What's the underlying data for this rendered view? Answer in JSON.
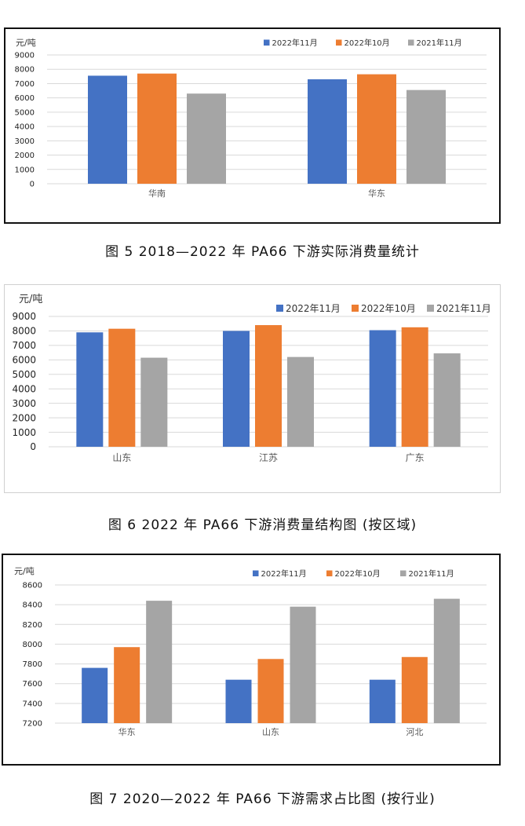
{
  "colors": {
    "series": [
      "#4472C4",
      "#ED7D31",
      "#A5A5A5"
    ],
    "grid": "#d9d9d9",
    "axis_text": "#595959"
  },
  "chart_data": [
    {
      "type": "bar",
      "unit_label": "元/吨",
      "categories": [
        "华南",
        "华东"
      ],
      "series": [
        {
          "name": "2022年11月",
          "values": [
            7550,
            7300
          ]
        },
        {
          "name": "2022年10月",
          "values": [
            7700,
            7650
          ]
        },
        {
          "name": "2021年11月",
          "values": [
            6300,
            6550
          ]
        }
      ],
      "ylim": [
        0,
        9000
      ],
      "yticks": [
        0,
        1000,
        2000,
        3000,
        4000,
        5000,
        6000,
        7000,
        8000,
        9000
      ],
      "grid": true,
      "legend": "top-right",
      "caption": "图 5 2018—2022 年 PA66 下游实际消费量统计"
    },
    {
      "type": "bar",
      "unit_label": "元/吨",
      "categories": [
        "山东",
        "江苏",
        "广东"
      ],
      "series": [
        {
          "name": "2022年11月",
          "values": [
            7900,
            8000,
            8050
          ]
        },
        {
          "name": "2022年10月",
          "values": [
            8150,
            8400,
            8250
          ]
        },
        {
          "name": "2021年11月",
          "values": [
            6150,
            6200,
            6450
          ]
        }
      ],
      "ylim": [
        0,
        9000
      ],
      "yticks": [
        0,
        1000,
        2000,
        3000,
        4000,
        5000,
        6000,
        7000,
        8000,
        9000
      ],
      "grid": true,
      "legend": "top-right",
      "caption": "图 6 2022 年 PA66 下游消费量结构图 (按区域)"
    },
    {
      "type": "bar",
      "unit_label": "元/吨",
      "categories": [
        "华东",
        "山东",
        "河北"
      ],
      "series": [
        {
          "name": "2022年11月",
          "values": [
            7760,
            7640,
            7640
          ]
        },
        {
          "name": "2022年10月",
          "values": [
            7970,
            7850,
            7870
          ]
        },
        {
          "name": "2021年11月",
          "values": [
            8440,
            8380,
            8460
          ]
        }
      ],
      "ylim": [
        7200,
        8600
      ],
      "yticks": [
        7200,
        7400,
        7600,
        7800,
        8000,
        8200,
        8400,
        8600
      ],
      "grid": true,
      "legend": "top-right",
      "caption": "图 7 2020—2022 年 PA66 下游需求占比图 (按行业)"
    }
  ]
}
